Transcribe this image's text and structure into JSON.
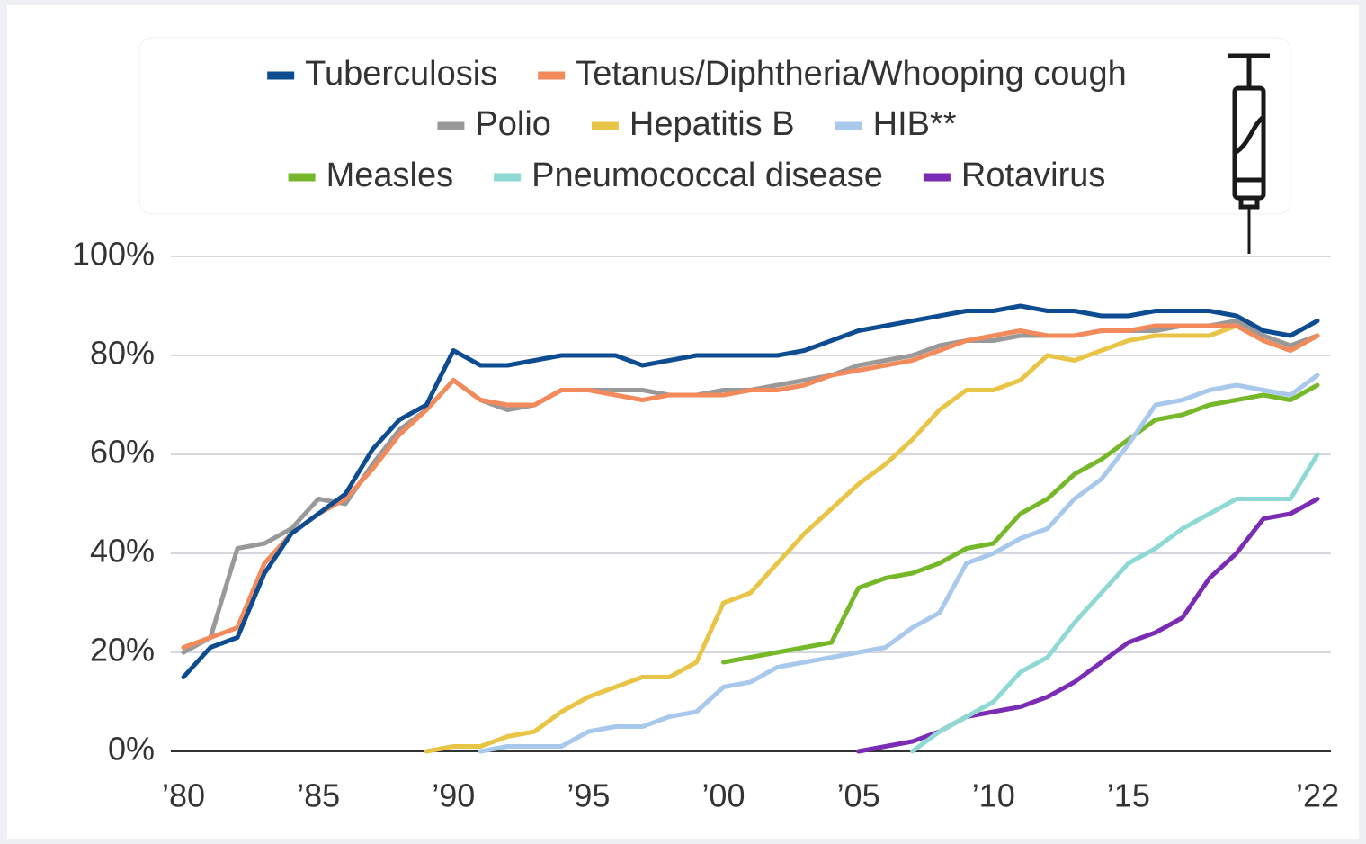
{
  "chart_data": {
    "type": "line",
    "x": [
      1980,
      1981,
      1982,
      1983,
      1984,
      1985,
      1986,
      1987,
      1988,
      1989,
      1990,
      1991,
      1992,
      1993,
      1994,
      1995,
      1996,
      1997,
      1998,
      1999,
      2000,
      2001,
      2002,
      2003,
      2004,
      2005,
      2006,
      2007,
      2008,
      2009,
      2010,
      2011,
      2012,
      2013,
      2014,
      2015,
      2016,
      2017,
      2018,
      2019,
      2020,
      2021,
      2022
    ],
    "xlim": [
      1980,
      2022
    ],
    "xticks": [
      {
        "value": 1980,
        "label": "’80"
      },
      {
        "value": 1985,
        "label": "’85"
      },
      {
        "value": 1990,
        "label": "’90"
      },
      {
        "value": 1995,
        "label": "’95"
      },
      {
        "value": 2000,
        "label": "’00"
      },
      {
        "value": 2005,
        "label": "’05"
      },
      {
        "value": 2010,
        "label": "’10"
      },
      {
        "value": 2015,
        "label": "’15"
      },
      {
        "value": 2022,
        "label": "’22"
      }
    ],
    "ylim": [
      0,
      100
    ],
    "yticks": [
      {
        "value": 0,
        "label": "0%"
      },
      {
        "value": 20,
        "label": "20%"
      },
      {
        "value": 40,
        "label": "40%"
      },
      {
        "value": 60,
        "label": "60%"
      },
      {
        "value": 80,
        "label": "80%"
      },
      {
        "value": 100,
        "label": "100%"
      }
    ],
    "grid": true,
    "series": [
      {
        "name": "Tuberculosis",
        "color": "#0e4c92",
        "values": [
          15,
          21,
          23,
          36,
          44,
          48,
          52,
          61,
          67,
          70,
          81,
          78,
          78,
          79,
          80,
          80,
          80,
          78,
          79,
          80,
          80,
          80,
          80,
          81,
          83,
          85,
          86,
          87,
          88,
          89,
          89,
          90,
          89,
          89,
          88,
          88,
          89,
          89,
          89,
          88,
          85,
          84,
          87
        ]
      },
      {
        "name": "Tetanus/Diphtheria/Whooping cough",
        "color": "#f28a5b",
        "values": [
          21,
          23,
          25,
          38,
          44,
          48,
          51,
          57,
          64,
          69,
          75,
          71,
          70,
          70,
          73,
          73,
          72,
          71,
          72,
          72,
          72,
          73,
          73,
          74,
          76,
          77,
          78,
          79,
          81,
          83,
          84,
          85,
          84,
          84,
          85,
          85,
          86,
          86,
          86,
          86,
          83,
          81,
          84
        ]
      },
      {
        "name": "Polio",
        "color": "#999999",
        "values": [
          20,
          23,
          41,
          42,
          45,
          51,
          50,
          58,
          65,
          69,
          75,
          71,
          69,
          70,
          73,
          73,
          73,
          73,
          72,
          72,
          73,
          73,
          74,
          75,
          76,
          78,
          79,
          80,
          82,
          83,
          83,
          84,
          84,
          84,
          85,
          85,
          85,
          86,
          86,
          87,
          84,
          82,
          84
        ]
      },
      {
        "name": "Hepatitis B",
        "color": "#e8c547",
        "values": [
          null,
          null,
          null,
          null,
          null,
          null,
          null,
          null,
          null,
          0,
          1,
          1,
          3,
          4,
          8,
          11,
          13,
          15,
          15,
          18,
          30,
          32,
          38,
          44,
          49,
          54,
          58,
          63,
          69,
          73,
          73,
          75,
          80,
          79,
          81,
          83,
          84,
          84,
          84,
          86,
          83,
          81,
          84
        ]
      },
      {
        "name": "HIB**",
        "color": "#a8c8ec",
        "values": [
          null,
          null,
          null,
          null,
          null,
          null,
          null,
          null,
          null,
          null,
          null,
          0,
          1,
          1,
          1,
          4,
          5,
          5,
          7,
          8,
          13,
          14,
          17,
          18,
          19,
          20,
          21,
          25,
          28,
          38,
          40,
          43,
          45,
          51,
          55,
          62,
          70,
          71,
          73,
          74,
          73,
          72,
          76
        ]
      },
      {
        "name": "Measles",
        "color": "#76b82a",
        "values": [
          null,
          null,
          null,
          null,
          null,
          null,
          null,
          null,
          null,
          null,
          null,
          null,
          null,
          null,
          null,
          null,
          null,
          null,
          null,
          null,
          18,
          19,
          20,
          21,
          22,
          33,
          35,
          36,
          38,
          41,
          42,
          48,
          51,
          56,
          59,
          63,
          67,
          68,
          70,
          71,
          72,
          71,
          74
        ]
      },
      {
        "name": "Pneumococcal disease",
        "color": "#8fd9d5",
        "values": [
          null,
          null,
          null,
          null,
          null,
          null,
          null,
          null,
          null,
          null,
          null,
          null,
          null,
          null,
          null,
          null,
          null,
          null,
          null,
          null,
          null,
          null,
          null,
          null,
          null,
          null,
          null,
          0,
          4,
          7,
          10,
          16,
          19,
          26,
          32,
          38,
          41,
          45,
          48,
          51,
          51,
          51,
          60
        ]
      },
      {
        "name": "Rotavirus",
        "color": "#7b2cb5",
        "values": [
          null,
          null,
          null,
          null,
          null,
          null,
          null,
          null,
          null,
          null,
          null,
          null,
          null,
          null,
          null,
          null,
          null,
          null,
          null,
          null,
          null,
          null,
          null,
          null,
          null,
          0,
          1,
          2,
          4,
          7,
          8,
          9,
          11,
          14,
          18,
          22,
          24,
          27,
          35,
          40,
          47,
          48,
          51
        ]
      }
    ]
  }
}
